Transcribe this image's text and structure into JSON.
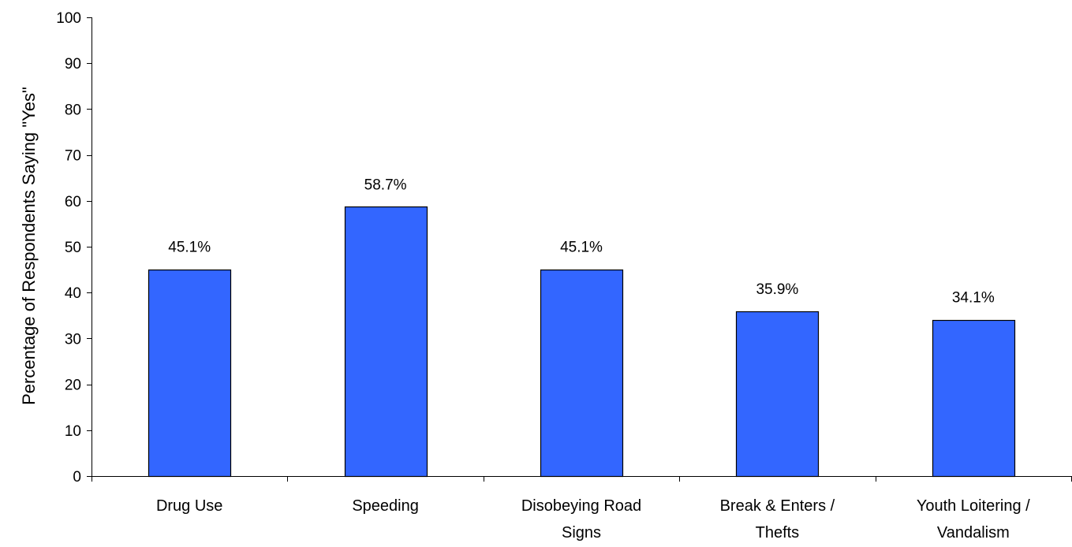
{
  "chart_data": {
    "type": "bar",
    "title": "",
    "xlabel": "",
    "ylabel": "Percentage of Respondents Saying \"Yes\"",
    "ylim": [
      0,
      100
    ],
    "yticks": [
      0,
      10,
      20,
      30,
      40,
      50,
      60,
      70,
      80,
      90,
      100
    ],
    "grid": false,
    "bar_color": "#3366FF",
    "categories": [
      [
        "Drug Use"
      ],
      [
        "Speeding"
      ],
      [
        "Disobeying Road",
        "Signs"
      ],
      [
        "Break & Enters /",
        "Thefts"
      ],
      [
        "Youth Loitering /",
        "Vandalism"
      ]
    ],
    "values": [
      45.1,
      58.7,
      45.1,
      35.9,
      34.1
    ],
    "data_labels": [
      "45.1%",
      "58.7%",
      "45.1%",
      "35.9%",
      "34.1%"
    ]
  }
}
